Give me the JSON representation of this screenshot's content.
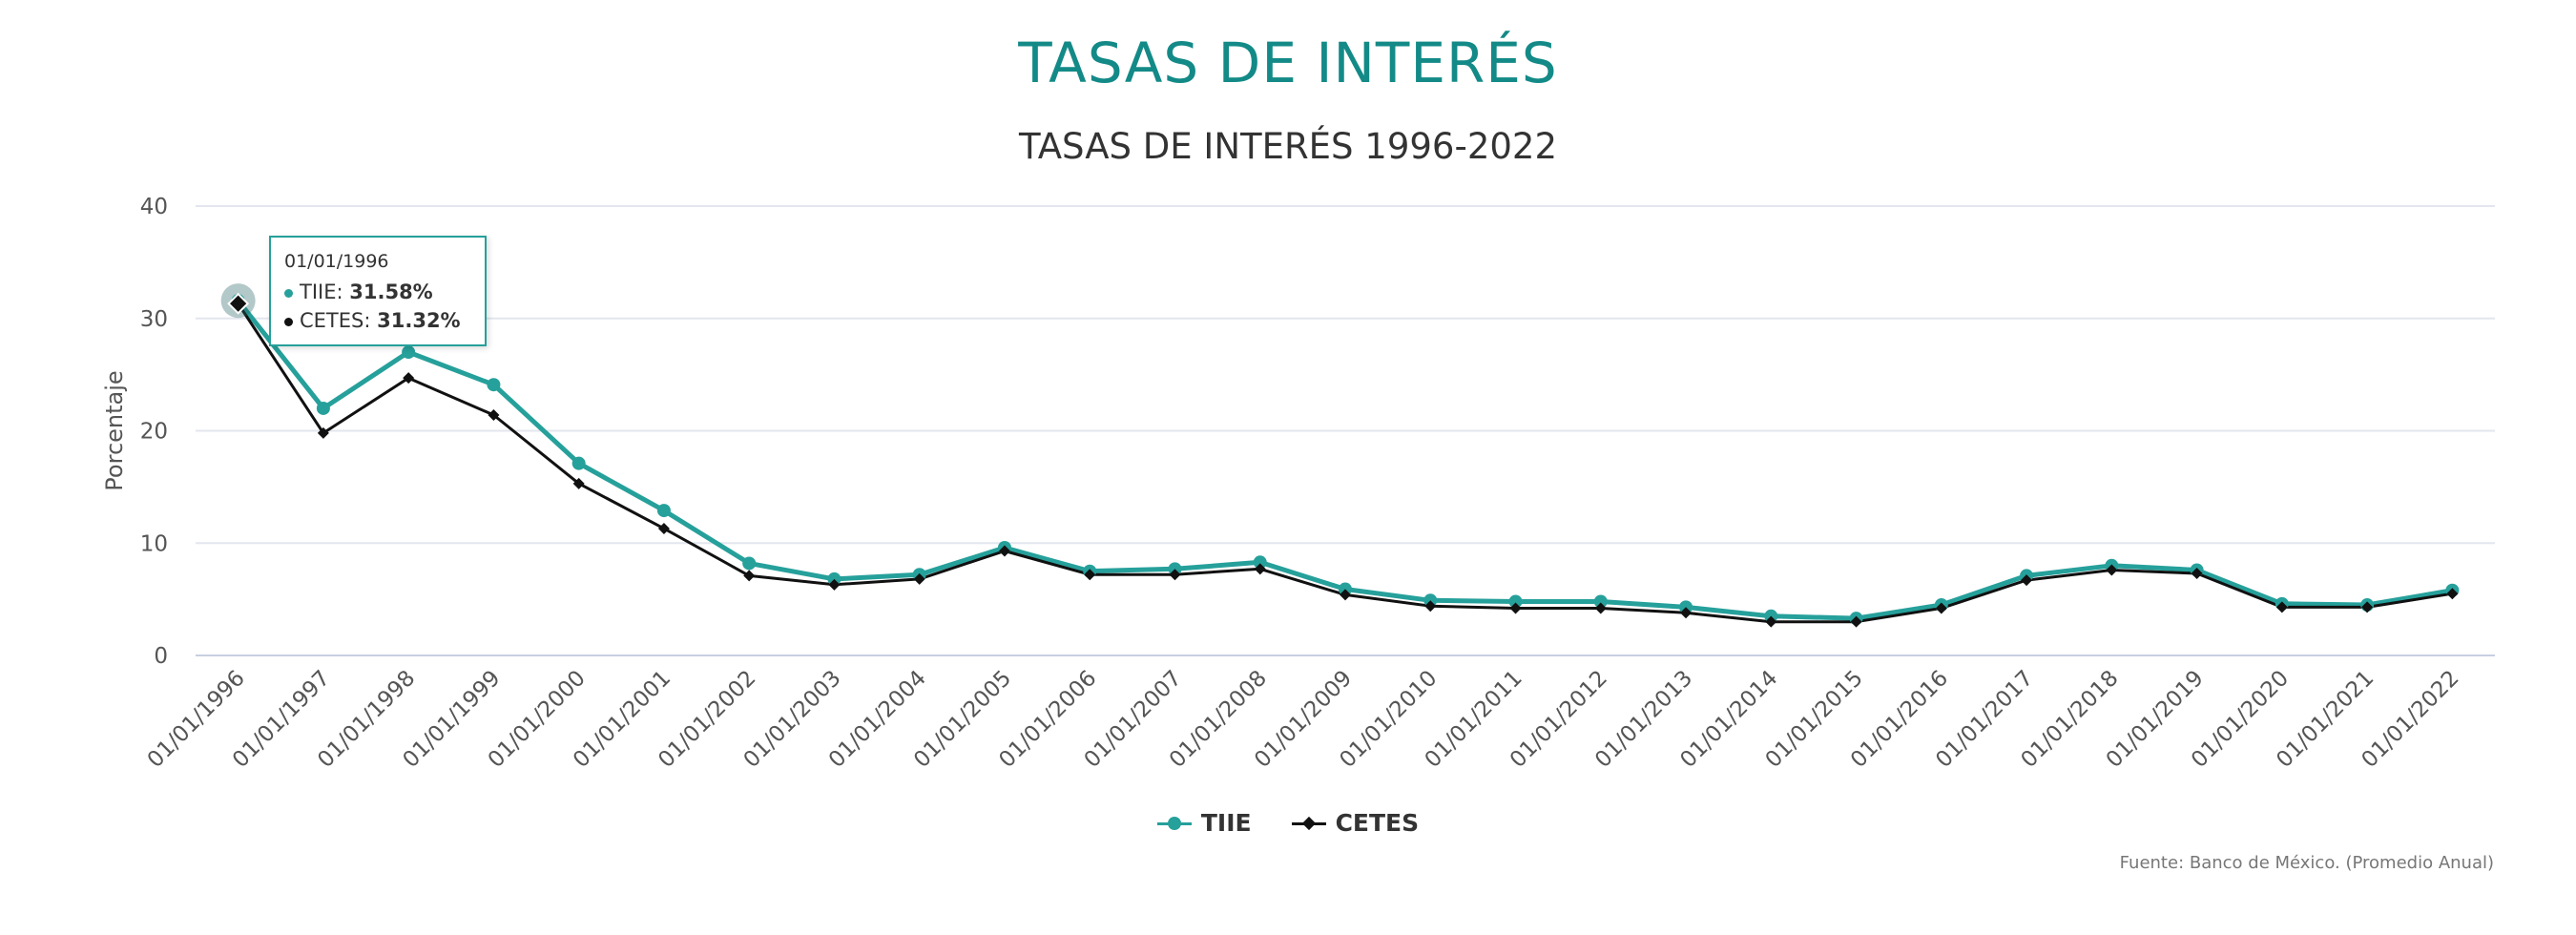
{
  "page": {
    "title": "TASAS DE INTERÉS",
    "source": "Fuente: Banco de México. (Promedio Anual)"
  },
  "colors": {
    "tiie": "#26a09b",
    "cetes": "#111111",
    "title": "#138a87",
    "grid": "#e3e6ee"
  },
  "tooltip": {
    "date": "01/01/1996",
    "rows": [
      {
        "name": "TIIE",
        "value": "31.58%"
      },
      {
        "name": "CETES",
        "value": "31.32%"
      }
    ]
  },
  "chart_data": {
    "type": "line",
    "title": "TASAS DE INTERÉS 1996-2022",
    "xlabel": "",
    "ylabel": "Porcentaje",
    "ylim": [
      0,
      40
    ],
    "yticks": [
      0,
      10,
      20,
      30,
      40
    ],
    "grid": true,
    "legend": "bottom-center",
    "categories": [
      "01/01/1996",
      "01/01/1997",
      "01/01/1998",
      "01/01/1999",
      "01/01/2000",
      "01/01/2001",
      "01/01/2002",
      "01/01/2003",
      "01/01/2004",
      "01/01/2005",
      "01/01/2006",
      "01/01/2007",
      "01/01/2008",
      "01/01/2009",
      "01/01/2010",
      "01/01/2011",
      "01/01/2012",
      "01/01/2013",
      "01/01/2014",
      "01/01/2015",
      "01/01/2016",
      "01/01/2017",
      "01/01/2018",
      "01/01/2019",
      "01/01/2020",
      "01/01/2021",
      "01/01/2022"
    ],
    "series": [
      {
        "name": "TIIE",
        "marker": "circle",
        "values": [
          31.58,
          22.0,
          27.0,
          24.1,
          17.1,
          12.9,
          8.2,
          6.8,
          7.2,
          9.6,
          7.5,
          7.7,
          8.3,
          5.9,
          4.9,
          4.8,
          4.8,
          4.3,
          3.5,
          3.3,
          4.5,
          7.1,
          8.0,
          7.6,
          4.6,
          4.5,
          5.8
        ]
      },
      {
        "name": "CETES",
        "marker": "diamond",
        "values": [
          31.32,
          19.8,
          24.7,
          21.4,
          15.3,
          11.3,
          7.1,
          6.3,
          6.8,
          9.3,
          7.2,
          7.2,
          7.7,
          5.4,
          4.4,
          4.2,
          4.2,
          3.8,
          3.0,
          3.0,
          4.2,
          6.7,
          7.6,
          7.3,
          4.3,
          4.3,
          5.5
        ]
      }
    ]
  }
}
